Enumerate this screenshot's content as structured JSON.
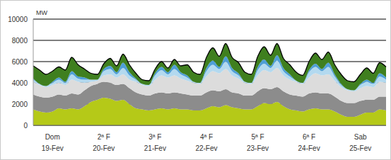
{
  "chart_data": {
    "type": "area",
    "stacked": true,
    "y_label": "MW",
    "categories": [
      null,
      null,
      null,
      "Dom\n19-Fev",
      null,
      null,
      null,
      null,
      null,
      null,
      null,
      "2ª F\n20-Fev",
      null,
      null,
      null,
      null,
      null,
      null,
      null,
      "3ª F\n21-Fev",
      null,
      null,
      null,
      null,
      null,
      null,
      null,
      "4ª F\n22-Fev",
      null,
      null,
      null,
      null,
      null,
      null,
      null,
      "5ª F\n23-Fev",
      null,
      null,
      null,
      null,
      null,
      null,
      null,
      "6ª F\n24-Fev",
      null,
      null,
      null,
      null,
      null,
      null,
      null,
      "Sab\n25-Fev",
      null,
      null,
      null,
      null
    ],
    "ylim": [
      0,
      10000
    ],
    "yticks": [
      0,
      2000,
      4000,
      6000,
      8000,
      10000
    ],
    "grid": true,
    "series": [
      {
        "color": "#b5c918",
        "values": [
          1500,
          1300,
          1200,
          1300,
          1600,
          1500,
          1600,
          1500,
          1800,
          2200,
          2400,
          2600,
          2500,
          2300,
          2400,
          2000,
          1600,
          1500,
          1400,
          1500,
          1600,
          1500,
          1600,
          1500,
          1500,
          1400,
          1400,
          1600,
          1800,
          1700,
          1900,
          1700,
          1600,
          1500,
          1500,
          1800,
          2100,
          2000,
          2200,
          1800,
          1500,
          1400,
          1300,
          1500,
          1600,
          1500,
          1500,
          1300,
          1000,
          800,
          800,
          1000,
          1200,
          1200,
          1500,
          1400
        ]
      },
      {
        "color": "#8c8c8c",
        "values": [
          1400,
          1400,
          1400,
          1400,
          1300,
          1300,
          1400,
          1400,
          1500,
          1500,
          1500,
          1500,
          1500,
          1500,
          1500,
          1500,
          1500,
          1400,
          1400,
          1500,
          1500,
          1500,
          1500,
          1500,
          1400,
          1400,
          1400,
          1500,
          1500,
          1500,
          1500,
          1400,
          1400,
          1300,
          1300,
          1400,
          1400,
          1400,
          1400,
          1400,
          1400,
          1400,
          1400,
          1500,
          1500,
          1500,
          1500,
          1400,
          1300,
          1300,
          1300,
          1300,
          1200,
          1200,
          1200,
          1300
        ]
      },
      {
        "color": "#dcdcdc",
        "values": [
          1200,
          1100,
          1000,
          1100,
          1100,
          1000,
          1300,
          1200,
          700,
          400,
          300,
          600,
          800,
          700,
          900,
          800,
          1000,
          900,
          900,
          1300,
          1600,
          1500,
          1600,
          1400,
          1300,
          1200,
          1100,
          1500,
          1800,
          1700,
          1900,
          1600,
          1400,
          1200,
          1100,
          1500,
          1700,
          1600,
          1800,
          1500,
          1400,
          1300,
          1200,
          1500,
          1800,
          1700,
          1800,
          1500,
          1300,
          1200,
          1100,
          1200,
          1300,
          1200,
          1400,
          1300
        ]
      },
      {
        "color": "#b3d9ef",
        "values": [
          200,
          100,
          100,
          200,
          300,
          200,
          500,
          300,
          300,
          200,
          100,
          400,
          500,
          300,
          600,
          400,
          200,
          100,
          100,
          400,
          500,
          300,
          600,
          400,
          300,
          100,
          100,
          500,
          600,
          400,
          700,
          400,
          300,
          100,
          100,
          500,
          600,
          400,
          700,
          400,
          300,
          100,
          100,
          500,
          600,
          400,
          700,
          400,
          200,
          100,
          100,
          300,
          400,
          300,
          500,
          300
        ]
      },
      {
        "color": "#4f9fd6",
        "values": [
          100,
          0,
          0,
          100,
          200,
          100,
          300,
          200,
          200,
          0,
          0,
          200,
          300,
          200,
          500,
          300,
          100,
          0,
          0,
          200,
          300,
          200,
          400,
          200,
          200,
          0,
          0,
          300,
          400,
          200,
          500,
          300,
          200,
          0,
          0,
          300,
          400,
          200,
          500,
          300,
          200,
          0,
          0,
          200,
          300,
          200,
          400,
          200,
          100,
          0,
          0,
          100,
          200,
          100,
          300,
          200
        ]
      },
      {
        "color": "#3f7f1f",
        "values": [
          1200,
          1300,
          1100,
          1000,
          1000,
          1100,
          1300,
          1100,
          800,
          600,
          500,
          500,
          700,
          600,
          800,
          700,
          500,
          400,
          400,
          400,
          500,
          400,
          500,
          600,
          1000,
          900,
          800,
          1000,
          1200,
          1000,
          1200,
          1000,
          1000,
          900,
          800,
          1000,
          1200,
          1000,
          1100,
          900,
          900,
          800,
          700,
          800,
          1000,
          900,
          1000,
          900,
          900,
          800,
          800,
          900,
          1100,
          900,
          1000,
          1000
        ]
      }
    ]
  }
}
